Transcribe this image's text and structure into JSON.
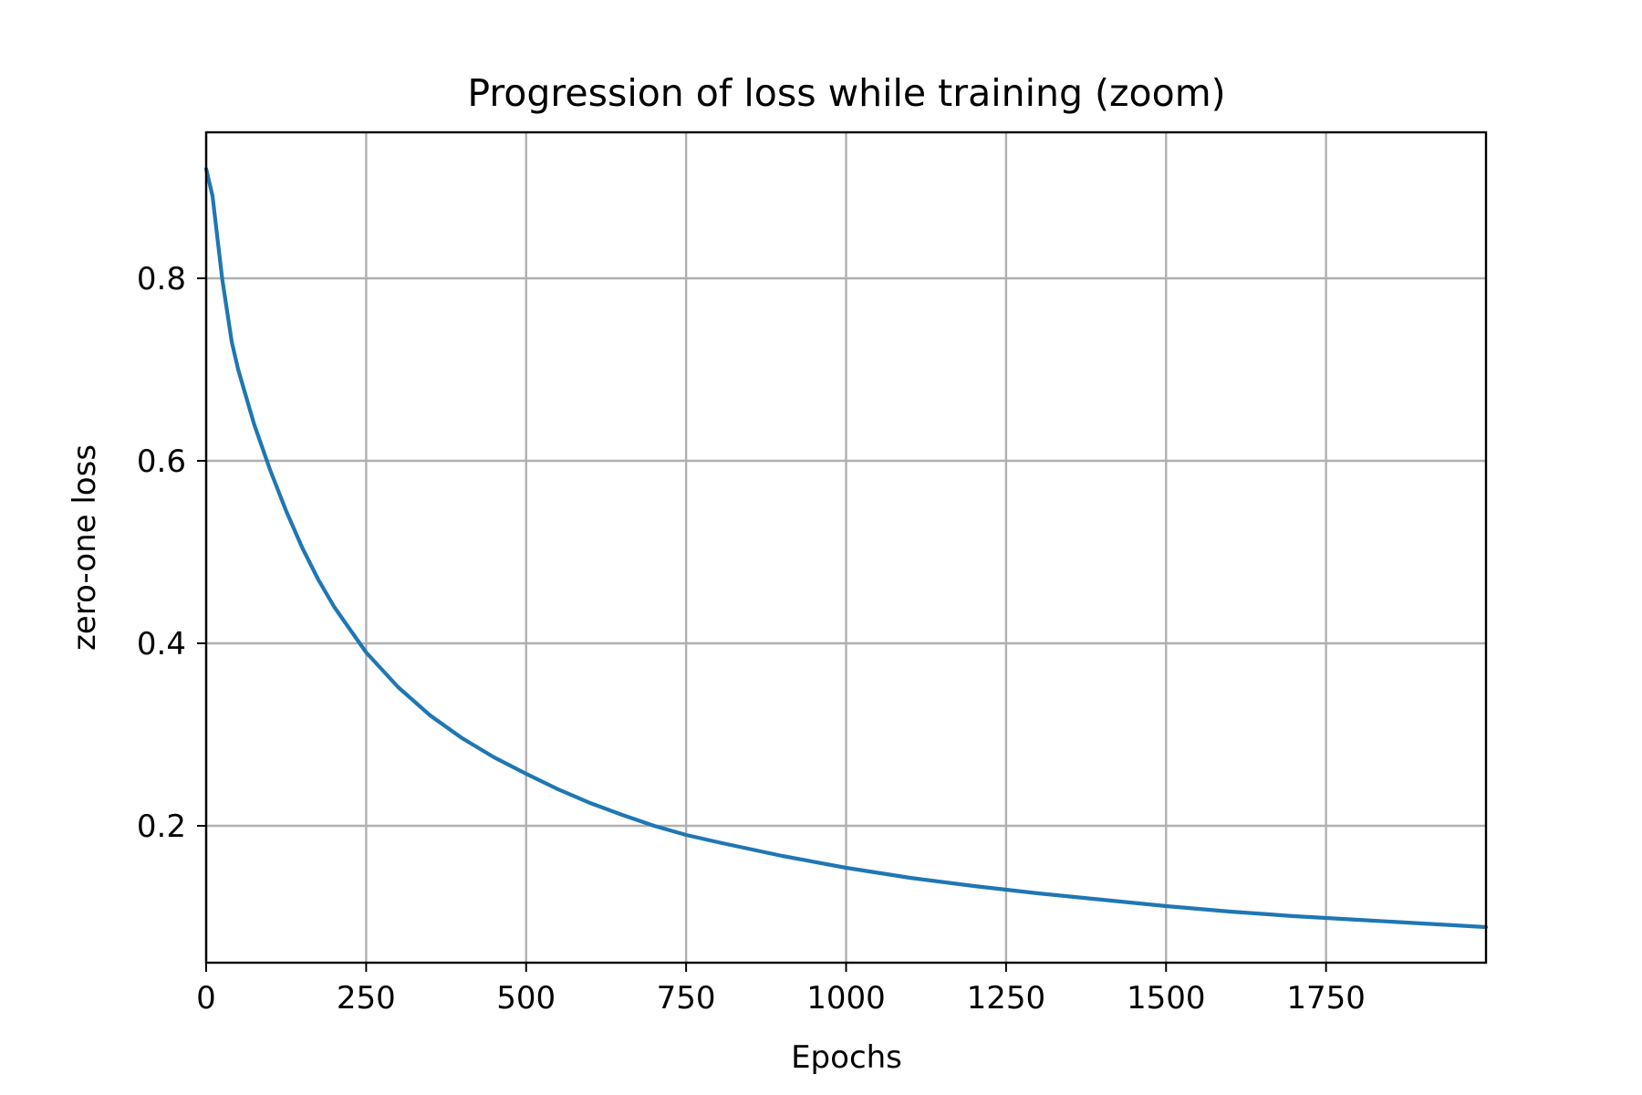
{
  "chart_data": {
    "type": "line",
    "title": "Progression of loss while training (zoom)",
    "xlabel": "Epochs",
    "ylabel": "zero-one loss",
    "xlim": [
      0,
      2000
    ],
    "ylim": [
      0.05,
      0.96
    ],
    "xticks": [
      0,
      250,
      500,
      750,
      1000,
      1250,
      1500,
      1750
    ],
    "xtick_labels": [
      "0",
      "250",
      "500",
      "750",
      "1000",
      "1250",
      "1500",
      "1750"
    ],
    "yticks": [
      0.2,
      0.4,
      0.6,
      0.8
    ],
    "ytick_labels": [
      "0.2",
      "0.4",
      "0.6",
      "0.8"
    ],
    "grid": true,
    "legend": "none",
    "series": [
      {
        "color": "#1f77b4",
        "x": [
          0,
          10,
          25,
          40,
          50,
          75,
          100,
          125,
          150,
          175,
          200,
          225,
          250,
          300,
          350,
          400,
          450,
          500,
          550,
          600,
          650,
          700,
          750,
          800,
          900,
          1000,
          1100,
          1200,
          1250,
          1300,
          1400,
          1500,
          1600,
          1700,
          1750,
          1800,
          1900,
          2000
        ],
        "y": [
          0.92,
          0.89,
          0.8,
          0.73,
          0.7,
          0.64,
          0.59,
          0.545,
          0.505,
          0.47,
          0.44,
          0.415,
          0.39,
          0.352,
          0.321,
          0.296,
          0.275,
          0.257,
          0.24,
          0.225,
          0.212,
          0.2,
          0.19,
          0.182,
          0.167,
          0.154,
          0.143,
          0.134,
          0.13,
          0.126,
          0.119,
          0.112,
          0.106,
          0.101,
          0.099,
          0.097,
          0.093,
          0.089
        ]
      }
    ]
  }
}
